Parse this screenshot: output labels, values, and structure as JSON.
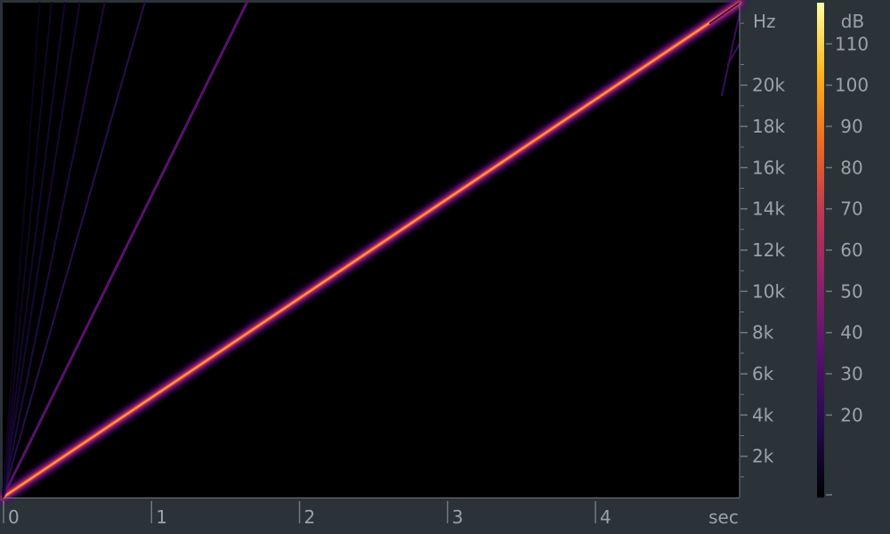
{
  "chart_data": {
    "type": "heatmap",
    "title": "",
    "xlabel": "sec",
    "ylabel": "Hz",
    "colorbar_label": "dB",
    "xlim": [
      0,
      4.98
    ],
    "ylim": [
      0,
      24000
    ],
    "x_ticks": [
      {
        "value": 0,
        "label": "0"
      },
      {
        "value": 1,
        "label": "1"
      },
      {
        "value": 2,
        "label": "2"
      },
      {
        "value": 3,
        "label": "3"
      },
      {
        "value": 4,
        "label": "4"
      }
    ],
    "y_ticks": [
      {
        "value": 2000,
        "label": "2k"
      },
      {
        "value": 4000,
        "label": "4k"
      },
      {
        "value": 6000,
        "label": "6k"
      },
      {
        "value": 8000,
        "label": "8k"
      },
      {
        "value": 10000,
        "label": "10k"
      },
      {
        "value": 12000,
        "label": "12k"
      },
      {
        "value": 14000,
        "label": "14k"
      },
      {
        "value": 16000,
        "label": "16k"
      },
      {
        "value": 18000,
        "label": "18k"
      },
      {
        "value": 20000,
        "label": "20k"
      }
    ],
    "colorbar_range": [
      0,
      120
    ],
    "colorbar_ticks": [
      {
        "value": 20,
        "label": "20"
      },
      {
        "value": 30,
        "label": "30"
      },
      {
        "value": 40,
        "label": "40"
      },
      {
        "value": 50,
        "label": "50"
      },
      {
        "value": 60,
        "label": "60"
      },
      {
        "value": 70,
        "label": "70"
      },
      {
        "value": 80,
        "label": "80"
      },
      {
        "value": 90,
        "label": "90"
      },
      {
        "value": 100,
        "label": "100"
      },
      {
        "value": 110,
        "label": "110"
      }
    ],
    "colormap": [
      "#fcffa4",
      "#fbb61a",
      "#ed6925",
      "#bc3754",
      "#89226a",
      "#57106e",
      "#210c4a",
      "#000004"
    ],
    "background_color": "#000000",
    "frame_color": "#2b3238",
    "text_color": "#9aa3ab",
    "series": [
      {
        "kind": "fundamental",
        "start": [
          0,
          0
        ],
        "end": [
          4.98,
          24000
        ],
        "level_db": 0
      },
      {
        "kind": "harmonic",
        "start": [
          0,
          0
        ],
        "end": [
          1.65,
          24000
        ],
        "level_db": 85
      },
      {
        "kind": "harmonic",
        "start": [
          0,
          0
        ],
        "end": [
          0.96,
          24000
        ],
        "level_db": 100
      },
      {
        "kind": "harmonic",
        "start": [
          0,
          0
        ],
        "end": [
          0.69,
          24000
        ],
        "level_db": 105
      },
      {
        "kind": "harmonic",
        "start": [
          0,
          0
        ],
        "end": [
          0.52,
          24000
        ],
        "level_db": 108
      },
      {
        "kind": "harmonic",
        "start": [
          0,
          0
        ],
        "end": [
          0.42,
          24000
        ],
        "level_db": 110
      },
      {
        "kind": "harmonic",
        "start": [
          0,
          0
        ],
        "end": [
          0.33,
          24000
        ],
        "level_db": 112
      },
      {
        "kind": "harmonic",
        "start": [
          0,
          0
        ],
        "end": [
          0.25,
          24000
        ],
        "level_db": 114
      },
      {
        "kind": "aliased",
        "start": [
          4.98,
          24000
        ],
        "end": [
          4.78,
          23000
        ],
        "level_db": 95
      },
      {
        "kind": "aliased",
        "start": [
          4.98,
          23500
        ],
        "end": [
          4.86,
          19500
        ],
        "level_db": 95
      },
      {
        "kind": "aliased",
        "start": [
          4.98,
          22000
        ],
        "end": [
          4.9,
          21000
        ],
        "level_db": 95
      }
    ]
  }
}
